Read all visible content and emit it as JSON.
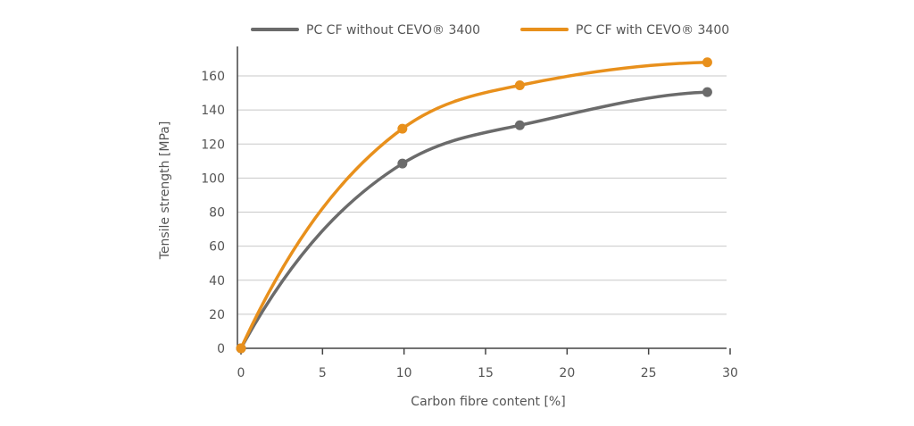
{
  "chart_data": {
    "type": "line",
    "title": "",
    "xlabel": "Carbon fibre content [%]",
    "ylabel": "Tensile strength [MPa]",
    "xlim": [
      0,
      30
    ],
    "ylim": [
      0,
      170
    ],
    "xticks": [
      0,
      5,
      10,
      15,
      20,
      25,
      30
    ],
    "yticks": [
      0,
      20,
      40,
      60,
      80,
      100,
      120,
      140,
      160
    ],
    "grid": "horizontal",
    "legend_position": "top",
    "series": [
      {
        "name": "PC CF without CEVO® 3400",
        "color": "#6b6b6b",
        "x": [
          0,
          9.9,
          17.1,
          28.6
        ],
        "y": [
          0,
          108.5,
          131,
          150.5
        ]
      },
      {
        "name": "PC CF with CEVO® 3400",
        "color": "#e8901c",
        "x": [
          0,
          9.9,
          17.1,
          28.6
        ],
        "y": [
          0,
          129,
          154.5,
          168
        ]
      }
    ]
  }
}
